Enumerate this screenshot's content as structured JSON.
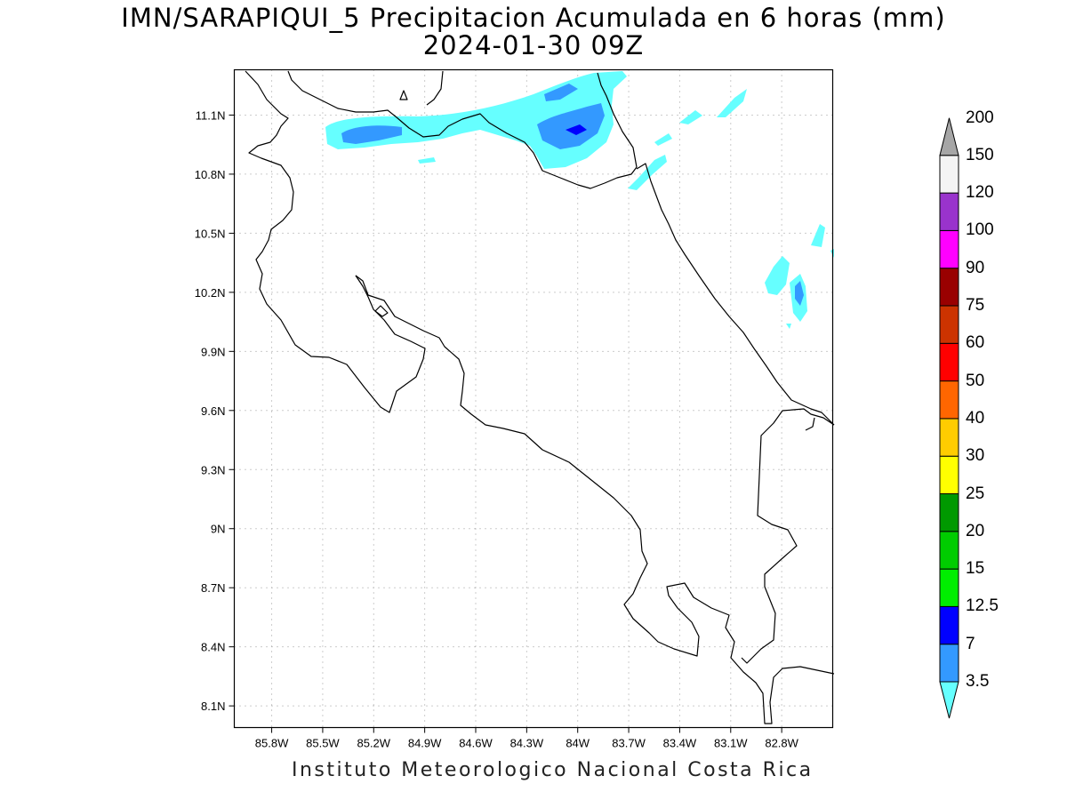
{
  "header": {
    "title_line1": "IMN/SARAPIQUI_5 Precipitacion Acumulada en 6 horas (mm)",
    "title_line2": "2024-01-30 09Z"
  },
  "map": {
    "lon_range": [
      -86.02,
      -82.5
    ],
    "lat_range": [
      7.99,
      11.33
    ],
    "lon_ticks": [
      -85.8,
      -85.5,
      -85.2,
      -84.9,
      -84.6,
      -84.3,
      -84.0,
      -83.7,
      -83.4,
      -83.1,
      -82.8
    ],
    "lon_tick_labels": [
      "85.8W",
      "85.5W",
      "85.2W",
      "84.9W",
      "84.6W",
      "84.3W",
      "84W",
      "83.7W",
      "83.4W",
      "83.1W",
      "82.8W"
    ],
    "lat_ticks": [
      8.1,
      8.4,
      8.7,
      9.0,
      9.3,
      9.6,
      9.9,
      10.2,
      10.5,
      10.8,
      11.1
    ],
    "lat_tick_labels": [
      "8.1N",
      "8.4N",
      "8.7N",
      "9N",
      "9.3N",
      "9.6N",
      "9.9N",
      "10.2N",
      "10.5N",
      "10.8N",
      "11.1N"
    ],
    "grid": true,
    "colors": {
      "c3_5": "#66ffff",
      "c7": "#3399ff",
      "c12_5": "#0000ff",
      "border": "#000000",
      "grid": "#999999"
    }
  },
  "colorbar": {
    "levels": [
      "3.5",
      "7",
      "12.5",
      "15",
      "20",
      "25",
      "30",
      "40",
      "50",
      "60",
      "75",
      "90",
      "100",
      "120",
      "150",
      "200"
    ],
    "colors": [
      "#66ffff",
      "#3399ff",
      "#0000ff",
      "#00ee00",
      "#00cc00",
      "#009900",
      "#ffff00",
      "#ffcc00",
      "#ff6600",
      "#ff0000",
      "#cc3300",
      "#990000",
      "#ff00ff",
      "#9933cc",
      "#f4f4f4",
      "#a6a6a6"
    ]
  },
  "footer": {
    "text": "Instituto Meteorologico Nacional Costa Rica"
  }
}
